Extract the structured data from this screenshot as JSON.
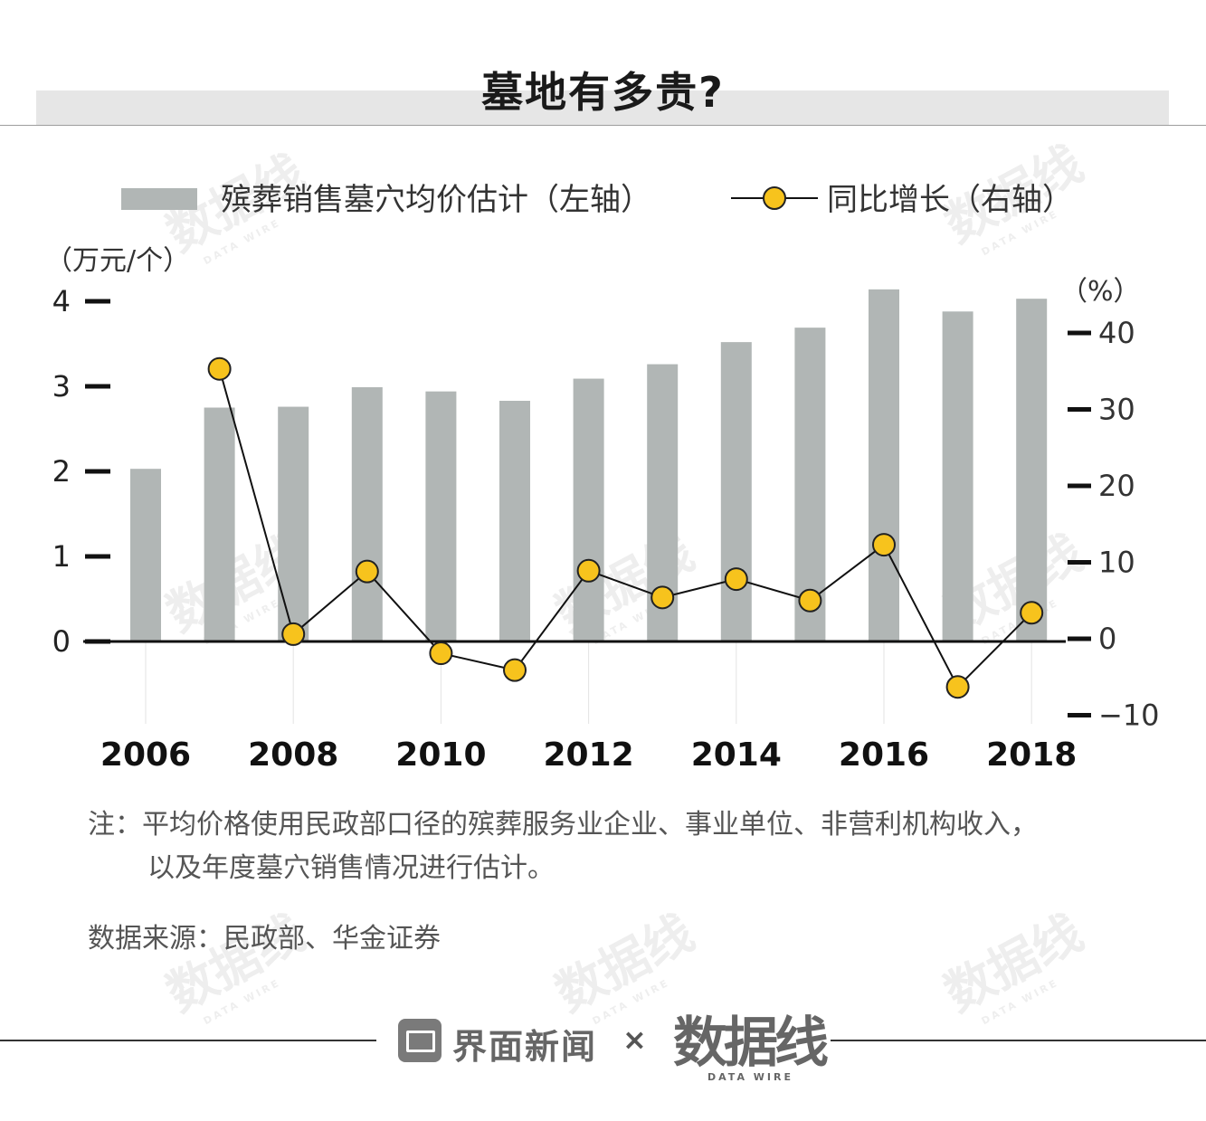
{
  "title": "墓地有多贵?",
  "legend": {
    "bar_label": "殡葬销售墓穴均价估计（左轴）",
    "line_label": "同比增长（右轴）"
  },
  "axes": {
    "left_unit": "（万元/个）",
    "right_unit": "（%）"
  },
  "colors": {
    "bar": "#b1b6b5",
    "line": "#111111",
    "marker_fill": "#f7c31d",
    "marker_stroke": "#222222"
  },
  "chart_data": {
    "type": "bar+line",
    "categories": [
      2006,
      2007,
      2008,
      2009,
      2010,
      2011,
      2012,
      2013,
      2014,
      2015,
      2016,
      2017,
      2018
    ],
    "x_tick_labels": [
      "2006",
      "2008",
      "2010",
      "2012",
      "2014",
      "2016",
      "2018"
    ],
    "series": [
      {
        "name": "殡葬销售墓穴均价估计（左轴）",
        "type": "bar",
        "axis": "left",
        "values": [
          2.03,
          2.75,
          2.76,
          2.99,
          2.94,
          2.83,
          3.09,
          3.26,
          3.52,
          3.69,
          4.14,
          3.88,
          4.03
        ]
      },
      {
        "name": "同比增长（右轴）",
        "type": "line",
        "axis": "right",
        "values": [
          null,
          35.3,
          0.6,
          8.8,
          -1.9,
          -4.1,
          8.9,
          5.4,
          7.8,
          5.0,
          12.3,
          -6.3,
          3.4
        ]
      }
    ],
    "left_axis": {
      "ticks": [
        0,
        1,
        2,
        3,
        4
      ],
      "unit": "万元/个"
    },
    "right_axis": {
      "ticks": [
        40,
        30,
        20,
        10,
        0,
        -10
      ],
      "tick_labels": [
        "40",
        "30",
        "20",
        "10",
        "0",
        "−10"
      ],
      "unit": "%"
    }
  },
  "note": {
    "line1": "注：平均价格使用民政部口径的殡葬服务业企业、事业单位、非营利机构收入，",
    "line2": "以及年度墓穴销售情况进行估计。"
  },
  "source": "数据来源：民政部、华金证券",
  "footer": {
    "brand": "界面新闻",
    "times": "×",
    "logo": "数据线",
    "logo_sub": "DATA WIRE"
  },
  "watermark": {
    "text": "数据线",
    "sub": "DATA WIRE"
  }
}
